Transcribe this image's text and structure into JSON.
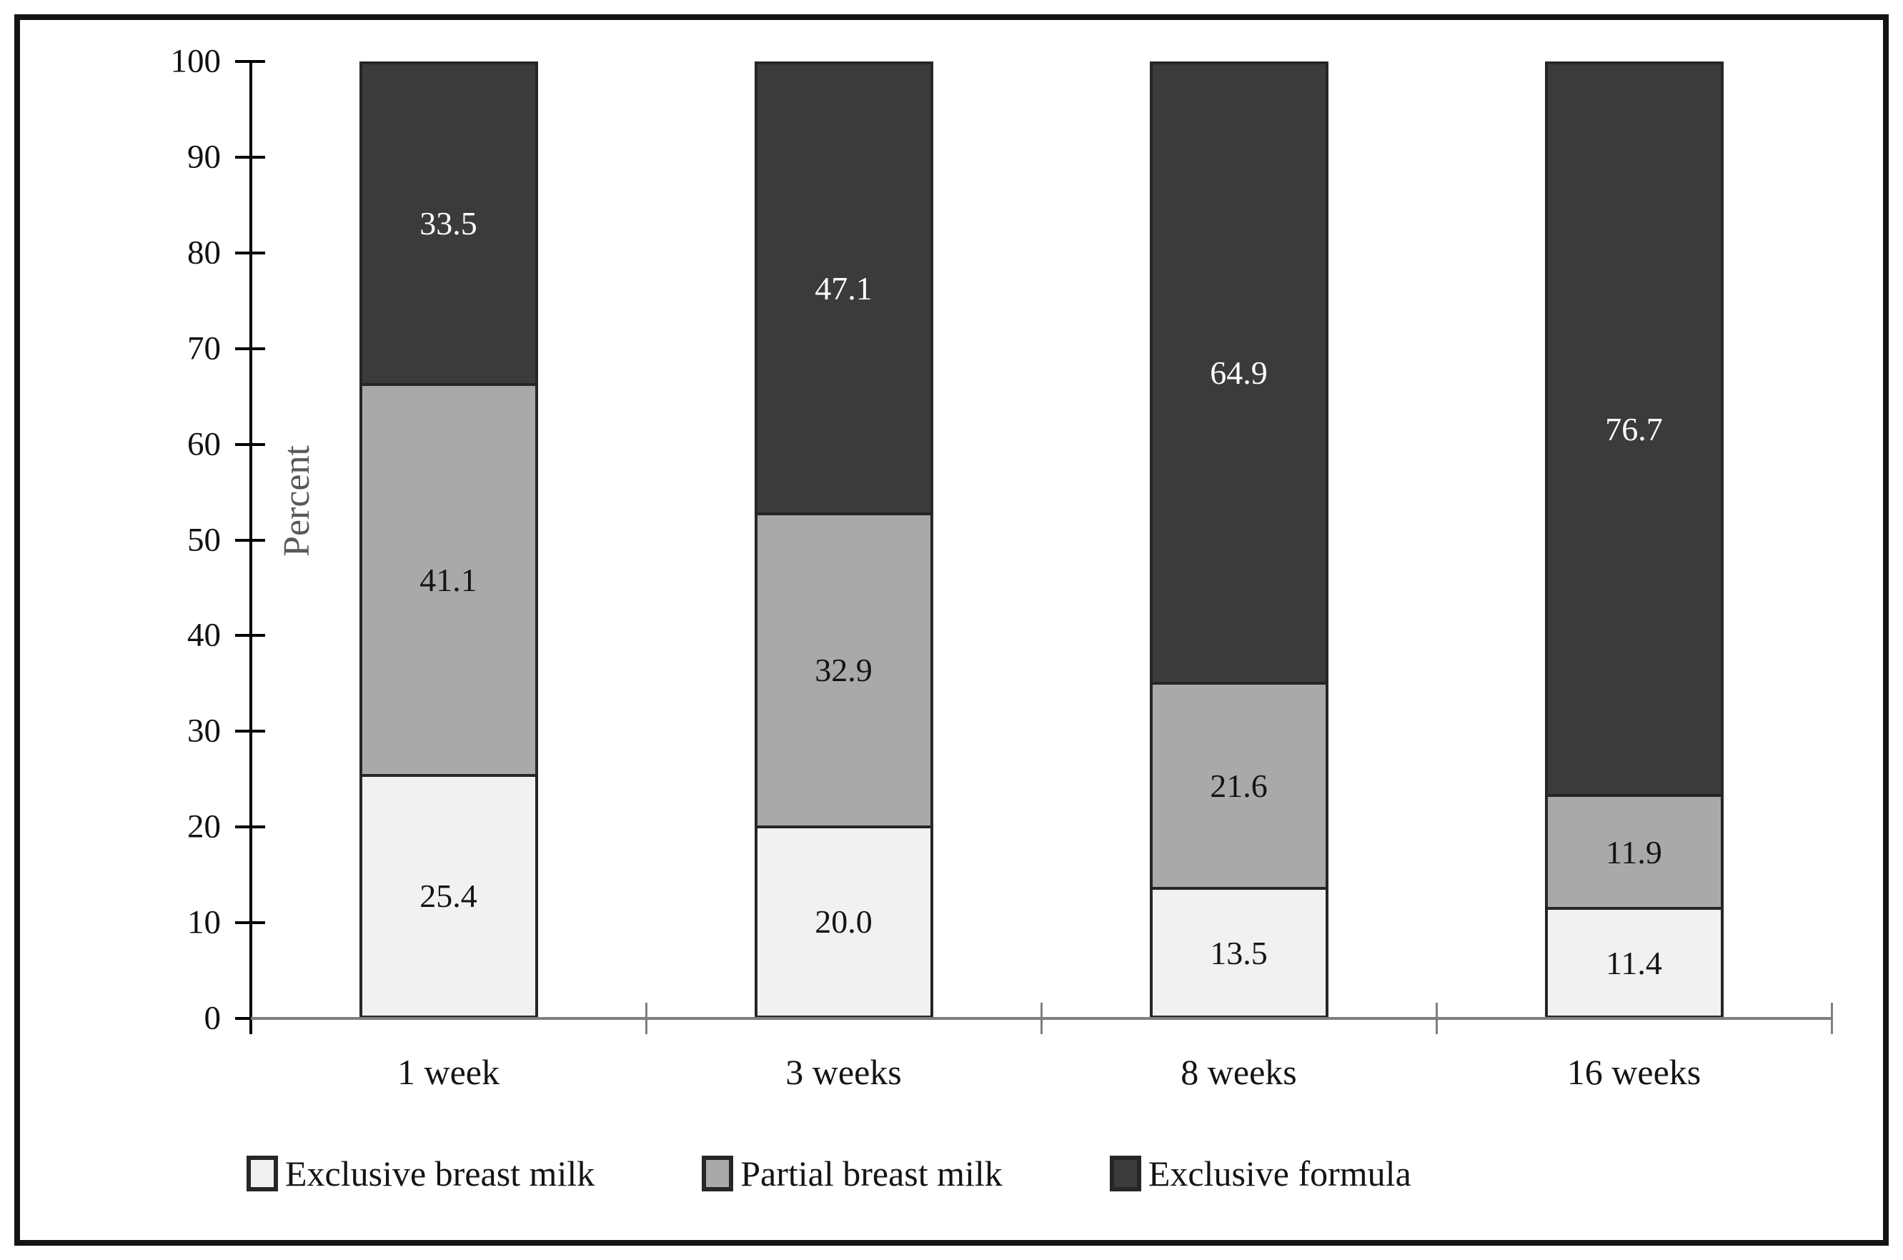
{
  "chart_data": {
    "type": "bar",
    "stacked": true,
    "percent_stack": true,
    "title": "",
    "xlabel": "",
    "ylabel": "Percent",
    "ylim": [
      0,
      100
    ],
    "yticks": [
      0,
      10,
      20,
      30,
      40,
      50,
      60,
      70,
      80,
      90,
      100
    ],
    "grid": false,
    "legend_position": "bottom",
    "categories": [
      "1 week",
      "3 weeks",
      "8 weeks",
      "16 weeks"
    ],
    "series": [
      {
        "name": "Exclusive breast milk",
        "values": [
          25.4,
          20.0,
          13.5,
          11.4
        ],
        "color": "#f1f1f1",
        "label_color": "#141414"
      },
      {
        "name": "Partial breast milk",
        "values": [
          41.1,
          32.9,
          21.6,
          11.9
        ],
        "color": "#a9a9a9",
        "label_color": "#141414"
      },
      {
        "name": "Exclusive formula",
        "values": [
          33.5,
          47.1,
          64.9,
          76.7
        ],
        "color": "#3b3b3b",
        "label_color": "#ffffff"
      }
    ],
    "value_label_decimals": 1
  },
  "colors": {
    "frame_border": "#141414",
    "y_axis": "#000000",
    "x_axis_baseline": "#7f7f7f",
    "segment_border": "#262626",
    "y_axis_title_text": "#595959",
    "tick_label_text": "#111111"
  }
}
